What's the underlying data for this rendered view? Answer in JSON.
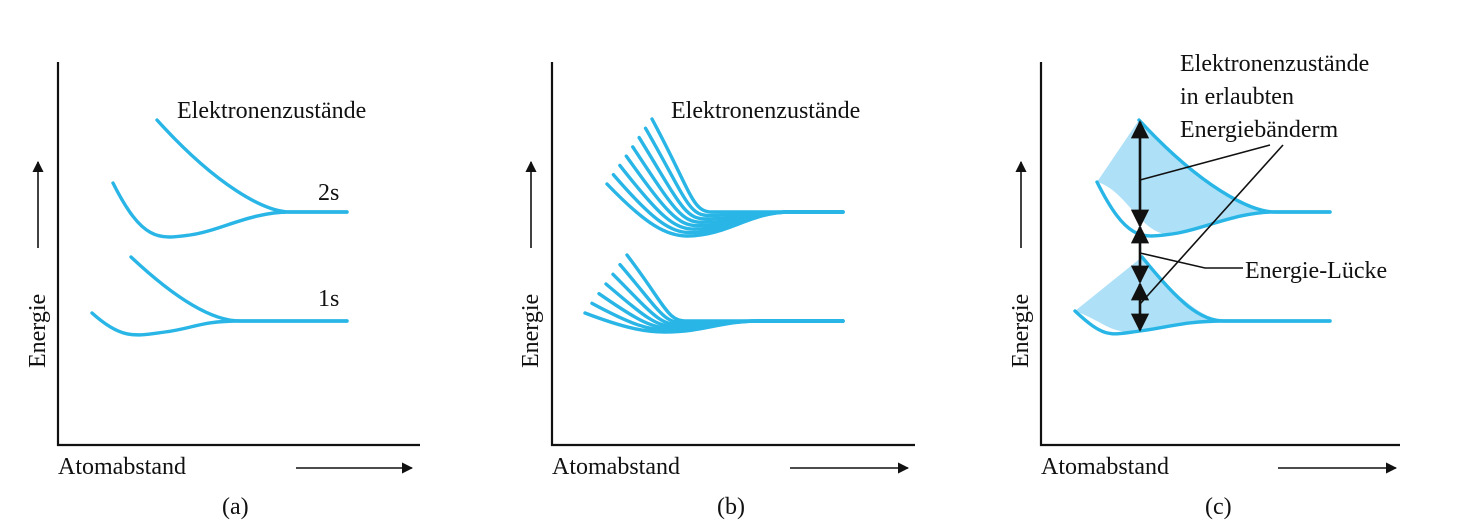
{
  "colors": {
    "curve": "#29b6e6",
    "band_fill": "#aee0f7",
    "ink": "#111111"
  },
  "panels": [
    {
      "id": "a",
      "y_axis_label": "Energie",
      "x_axis_label": "Atomabstand",
      "caption": "(a)",
      "top_label": "Elektronenzustände",
      "level_labels": [
        "2s",
        "1s"
      ]
    },
    {
      "id": "b",
      "y_axis_label": "Energie",
      "x_axis_label": "Atomabstand",
      "caption": "(b)",
      "top_label": "Elektronenzustände"
    },
    {
      "id": "c",
      "y_axis_label": "Energie",
      "x_axis_label": "Atomabstand",
      "caption": "(c)",
      "band_label_lines": [
        "Elektronenzustände",
        "in erlaubten",
        "Energiebänderm"
      ],
      "gap_label": "Energie-Lücke"
    }
  ]
}
